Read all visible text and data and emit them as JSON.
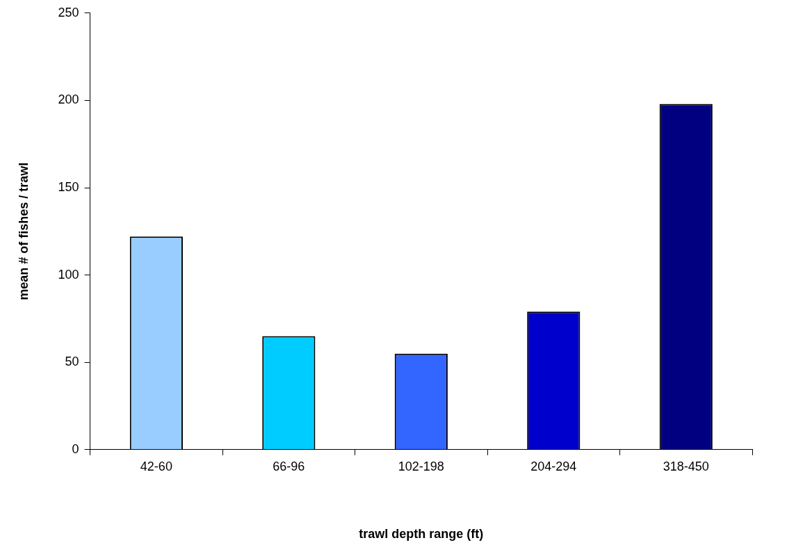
{
  "chart_data": {
    "type": "bar",
    "xlabel": "trawl depth range (ft)",
    "ylabel": "mean # of fishes / trawl",
    "categories": [
      "42-60",
      "66-96",
      "102-198",
      "204-294",
      "318-450"
    ],
    "values": [
      122,
      65,
      55,
      79,
      198
    ],
    "colors": [
      "#99ccff",
      "#00ccff",
      "#3366ff",
      "#0000cc",
      "#000080"
    ],
    "ylim": [
      0,
      250
    ],
    "yticks": [
      0,
      50,
      100,
      150,
      200,
      250
    ],
    "grid": false,
    "legend": false
  }
}
